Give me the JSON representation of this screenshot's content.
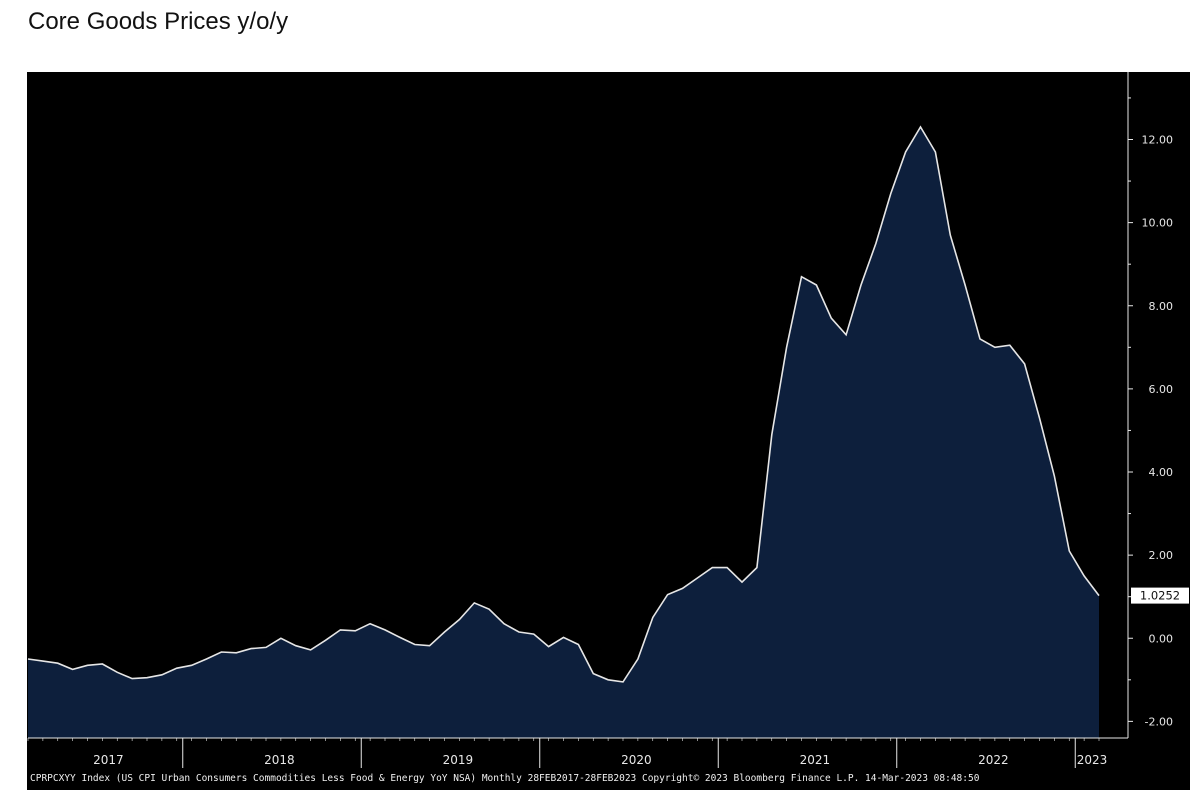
{
  "title": "Core Goods Prices y/o/y",
  "chart_data": {
    "type": "area",
    "y_ticks": [
      -2,
      0,
      2,
      4,
      6,
      8,
      10,
      12
    ],
    "y_tick_labels": [
      "-2.00",
      "0.00",
      "2.00",
      "4.00",
      "6.00",
      "8.00",
      "10.00",
      "12.00"
    ],
    "ylim": [
      -2.4,
      13.6
    ],
    "x_year_labels": [
      "2017",
      "2018",
      "2019",
      "2020",
      "2021",
      "2022",
      "2023"
    ],
    "last_value_label": "1.0252",
    "footer": "CPRPCXYY Index (US CPI Urban Consumers Commodities Less Food & Energy YoY NSA) Monthly 28FEB2017-28FEB2023 Copyright© 2023 Bloomberg Finance L.P. 14-Mar-2023 08:48:50",
    "grid": false,
    "series": [
      {
        "x": [
          "2017-02",
          "2017-03",
          "2017-04",
          "2017-05",
          "2017-06",
          "2017-07",
          "2017-08",
          "2017-09",
          "2017-10",
          "2017-11",
          "2017-12",
          "2018-01",
          "2018-02",
          "2018-03",
          "2018-04",
          "2018-05",
          "2018-06",
          "2018-07",
          "2018-08",
          "2018-09",
          "2018-10",
          "2018-11",
          "2018-12",
          "2019-01",
          "2019-02",
          "2019-03",
          "2019-04",
          "2019-05",
          "2019-06",
          "2019-07",
          "2019-08",
          "2019-09",
          "2019-10",
          "2019-11",
          "2019-12",
          "2020-01",
          "2020-02",
          "2020-03",
          "2020-04",
          "2020-05",
          "2020-06",
          "2020-07",
          "2020-08",
          "2020-09",
          "2020-10",
          "2020-11",
          "2020-12",
          "2021-01",
          "2021-02",
          "2021-03",
          "2021-04",
          "2021-05",
          "2021-06",
          "2021-07",
          "2021-08",
          "2021-09",
          "2021-10",
          "2021-11",
          "2021-12",
          "2022-01",
          "2022-02",
          "2022-03",
          "2022-04",
          "2022-05",
          "2022-06",
          "2022-07",
          "2022-08",
          "2022-09",
          "2022-10",
          "2022-11",
          "2022-12",
          "2023-01",
          "2023-02"
        ],
        "values": [
          -0.5,
          -0.55,
          -0.6,
          -0.75,
          -0.65,
          -0.62,
          -0.82,
          -0.97,
          -0.95,
          -0.88,
          -0.72,
          -0.65,
          -0.5,
          -0.33,
          -0.35,
          -0.25,
          -0.22,
          0.0,
          -0.18,
          -0.28,
          -0.05,
          0.2,
          0.18,
          0.35,
          0.2,
          0.02,
          -0.15,
          -0.18,
          0.15,
          0.45,
          0.85,
          0.7,
          0.35,
          0.15,
          0.1,
          -0.2,
          0.02,
          -0.15,
          -0.85,
          -1.0,
          -1.05,
          -0.5,
          0.5,
          1.05,
          1.2,
          1.45,
          1.7,
          1.7,
          1.35,
          1.7,
          4.9,
          7.0,
          8.7,
          8.5,
          7.7,
          7.3,
          8.5,
          9.5,
          10.7,
          11.7,
          12.3,
          11.7,
          9.7,
          8.5,
          7.2,
          7.0,
          7.05,
          6.6,
          5.3,
          3.9,
          2.1,
          1.5,
          1.0252
        ]
      }
    ]
  },
  "colors": {
    "plot_background": "#000000",
    "area_fill": "#0d1f3c",
    "line": "#e6e6e6",
    "text": "#e8e8e8",
    "title_text": "#111111"
  }
}
